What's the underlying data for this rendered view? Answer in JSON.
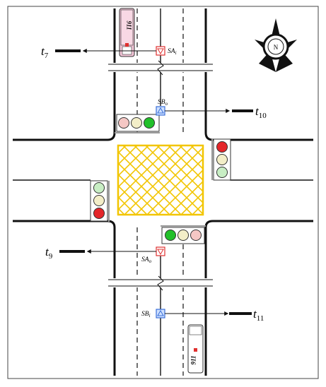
{
  "labels": {
    "t7": "t",
    "t7_sub": "7",
    "t9": "t",
    "t9_sub": "9",
    "t10": "t",
    "t10_sub": "10",
    "t11": "t",
    "t11_sub": "11",
    "sa_i": "SA",
    "sa_i_sub": "i",
    "sb_o": "SB",
    "sb_o_sub": "o",
    "sa_o": "SA",
    "sa_o_sub": "o",
    "sb_i": "SB",
    "sb_i_sub": "i"
  },
  "compass": {
    "letter": "N",
    "icon": "north-compass-icon"
  },
  "vehicles": [
    {
      "id": "bus-top",
      "plate": "911"
    },
    {
      "id": "bus-bottom",
      "plate": "911"
    }
  ],
  "signals": {
    "north_head": [
      "red-dim",
      "yellow-dim",
      "green"
    ],
    "east_head": [
      "red",
      "yellow-dim",
      "green-dim"
    ],
    "west_head": [
      "green-dim",
      "yellow-dim",
      "red"
    ],
    "south_head": [
      "green",
      "yellow-dim",
      "red-dim"
    ]
  },
  "colors": {
    "box_junction": "#f2c500",
    "sensor_red": "#e0302f",
    "sensor_blue": "#3a6fd8",
    "road_line": "#111111",
    "bus_pink": "#f4c6d8"
  }
}
